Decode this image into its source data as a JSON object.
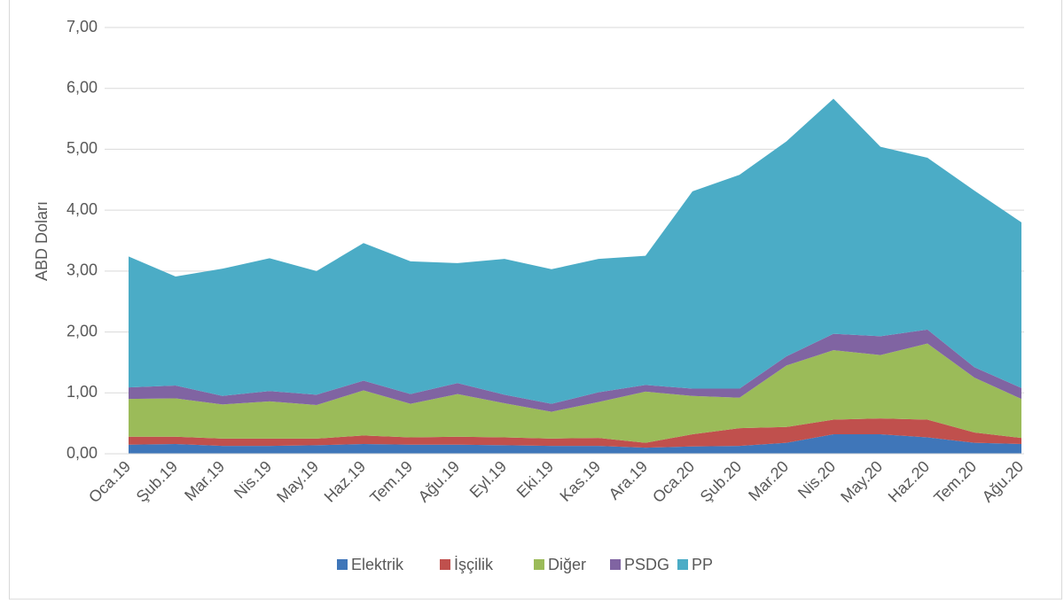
{
  "chart_data": {
    "type": "stacked_area",
    "y_label": "ABD Doları",
    "categories": [
      "Oca.19",
      "Şub.19",
      "Mar.19",
      "Nis.19",
      "May.19",
      "Haz.19",
      "Tem.19",
      "Ağu.19",
      "Eyl.19",
      "Eki.19",
      "Kas.19",
      "Ara.19",
      "Oca.20",
      "Şub.20",
      "Mar.20",
      "Nis.20",
      "May.20",
      "Haz.20",
      "Tem.20",
      "Ağu.20"
    ],
    "series": [
      {
        "name": "Elektrik",
        "color": "#3f76b9",
        "values": [
          0.15,
          0.16,
          0.13,
          0.13,
          0.14,
          0.16,
          0.15,
          0.15,
          0.14,
          0.13,
          0.13,
          0.1,
          0.12,
          0.13,
          0.18,
          0.32,
          0.32,
          0.27,
          0.18,
          0.16
        ]
      },
      {
        "name": "İşçilik",
        "color": "#c0504d",
        "values": [
          0.13,
          0.12,
          0.12,
          0.12,
          0.11,
          0.14,
          0.12,
          0.13,
          0.13,
          0.12,
          0.13,
          0.08,
          0.2,
          0.29,
          0.26,
          0.24,
          0.26,
          0.29,
          0.17,
          0.1
        ]
      },
      {
        "name": "Diğer",
        "color": "#9bbb59",
        "values": [
          0.62,
          0.63,
          0.56,
          0.61,
          0.55,
          0.74,
          0.55,
          0.7,
          0.56,
          0.44,
          0.59,
          0.84,
          0.63,
          0.5,
          1.01,
          1.14,
          1.04,
          1.25,
          0.9,
          0.64
        ]
      },
      {
        "name": "PSDG",
        "color": "#8064a2",
        "values": [
          0.19,
          0.21,
          0.14,
          0.17,
          0.17,
          0.16,
          0.16,
          0.18,
          0.14,
          0.13,
          0.16,
          0.11,
          0.12,
          0.15,
          0.15,
          0.27,
          0.31,
          0.23,
          0.17,
          0.18
        ]
      },
      {
        "name": "PP",
        "color": "#4bacc6",
        "values": [
          2.15,
          1.79,
          2.09,
          2.18,
          2.03,
          2.26,
          2.18,
          1.97,
          2.23,
          2.21,
          2.19,
          2.12,
          3.24,
          3.51,
          3.53,
          3.86,
          3.11,
          2.82,
          2.9,
          2.72
        ]
      }
    ],
    "ylim": [
      0,
      7
    ],
    "yticks": [
      {
        "value": 0,
        "label": "0,00"
      },
      {
        "value": 1,
        "label": "1,00"
      },
      {
        "value": 2,
        "label": "2,00"
      },
      {
        "value": 3,
        "label": "3,00"
      },
      {
        "value": 4,
        "label": "4,00"
      },
      {
        "value": 5,
        "label": "5,00"
      },
      {
        "value": 6,
        "label": "6,00"
      },
      {
        "value": 7,
        "label": "7,00"
      }
    ],
    "grid": true,
    "legend": "bottom"
  }
}
